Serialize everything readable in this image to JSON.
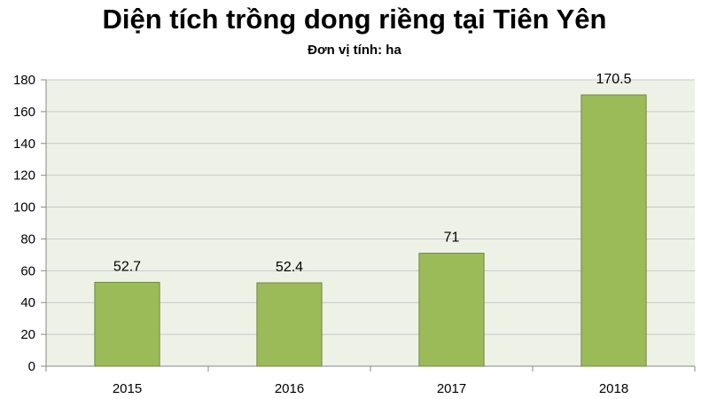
{
  "chart_data": {
    "type": "bar",
    "title": "Diện tích trồng dong riềng tại Tiên Yên",
    "subtitle": "Đơn vị tính: ha",
    "categories": [
      "2015",
      "2016",
      "2017",
      "2018"
    ],
    "values": [
      52.7,
      52.4,
      71,
      170.5
    ],
    "data_labels": [
      "52.7",
      "52.4",
      "71",
      "170.5"
    ],
    "yticks": [
      "0",
      "20",
      "40",
      "60",
      "80",
      "100",
      "120",
      "140",
      "160",
      "180"
    ],
    "ylim": [
      0,
      180
    ],
    "grid": true,
    "legend": "none",
    "colors": {
      "bar_fill": "#9bbb59",
      "bar_stroke": "#71893f",
      "plot_bg": "#eef2e6",
      "grid": "#c8c8c8"
    }
  }
}
